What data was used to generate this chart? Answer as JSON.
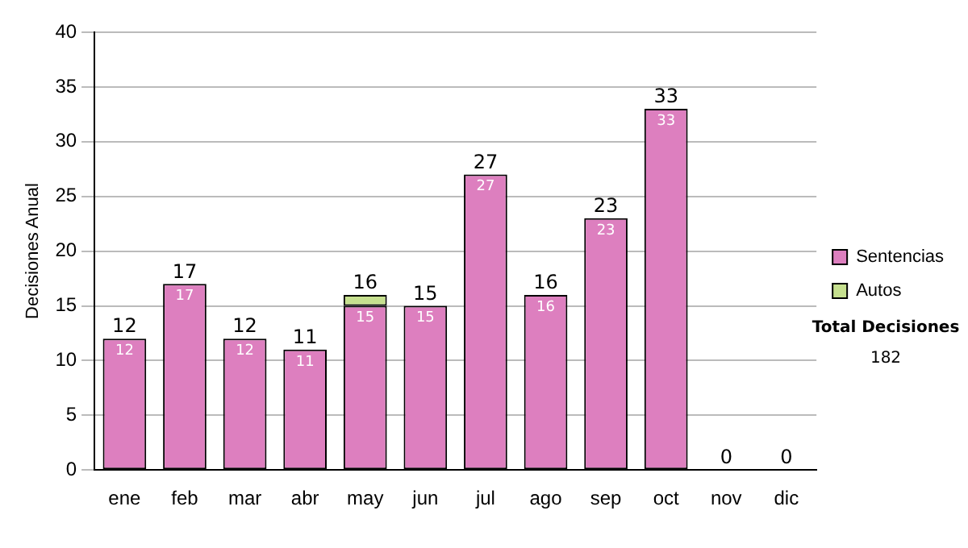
{
  "chart_data": {
    "type": "bar",
    "ylabel": "Decisiones Anual",
    "categories": [
      "ene",
      "feb",
      "mar",
      "abr",
      "may",
      "jun",
      "jul",
      "ago",
      "sep",
      "oct",
      "nov",
      "dic"
    ],
    "series": [
      {
        "name": "Sentencias",
        "color": "#dd7fbf",
        "values": [
          12,
          17,
          12,
          11,
          15,
          15,
          27,
          16,
          23,
          33,
          0,
          0
        ],
        "value_labels": [
          "12",
          "17",
          "12",
          "11",
          "15",
          "15",
          "27",
          "16",
          "23",
          "33",
          null,
          null
        ]
      },
      {
        "name": "Autos",
        "color": "#c6e08f",
        "values": [
          0,
          0,
          0,
          0,
          1,
          0,
          0,
          0,
          0,
          0,
          0,
          0
        ]
      }
    ],
    "stacked": true,
    "totals": [
      "12",
      "17",
      "12",
      "11",
      "16",
      "15",
      "27",
      "16",
      "23",
      "33",
      "0",
      "0"
    ],
    "ylim": [
      0,
      40
    ],
    "yticks": [
      0,
      5,
      10,
      15,
      20,
      25,
      30,
      35,
      40
    ],
    "grid": "y",
    "legend": "right",
    "annotations": [
      "Total Decisiones",
      "182"
    ]
  }
}
